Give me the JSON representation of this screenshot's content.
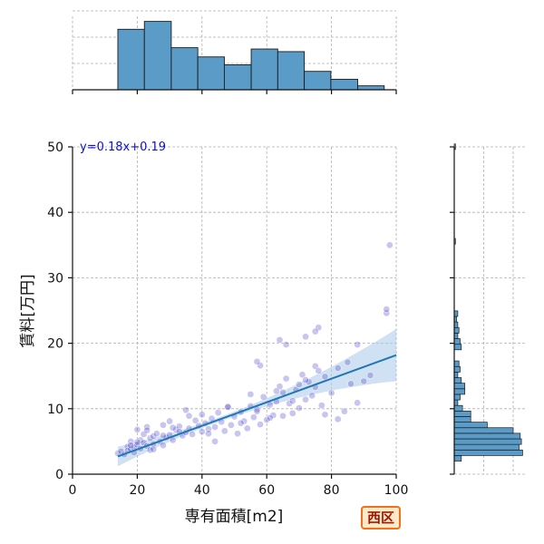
{
  "chart_data": {
    "type": "scatter",
    "xlabel": "専有面積[m2]",
    "ylabel": "賃料[万円]",
    "xlim": [
      0,
      100
    ],
    "ylim": [
      0,
      50
    ],
    "xticks": [
      0,
      20,
      40,
      60,
      80,
      100
    ],
    "yticks": [
      0,
      10,
      20,
      30,
      40,
      50
    ],
    "grid": true,
    "regression": {
      "label": "y=0.18x+0.19",
      "slope": 0.18,
      "intercept": 0.19,
      "x_range": [
        14,
        100
      ]
    },
    "points_x": [
      14,
      15,
      16,
      17,
      17,
      18,
      18,
      19,
      19,
      20,
      20,
      21,
      21,
      22,
      22,
      23,
      23,
      24,
      24,
      25,
      25,
      26,
      27,
      28,
      28,
      29,
      30,
      30,
      31,
      32,
      33,
      34,
      35,
      35,
      36,
      37,
      38,
      39,
      40,
      40,
      41,
      42,
      43,
      44,
      45,
      46,
      47,
      48,
      49,
      50,
      51,
      52,
      53,
      54,
      55,
      55,
      56,
      57,
      58,
      59,
      60,
      61,
      62,
      63,
      64,
      65,
      65,
      66,
      67,
      68,
      69,
      70,
      71,
      72,
      73,
      74,
      75,
      75,
      76,
      77,
      78,
      80,
      82,
      84,
      85,
      86,
      88,
      90,
      97,
      97,
      98,
      20,
      25,
      33,
      44,
      52,
      61,
      70,
      18,
      23,
      28,
      31,
      36,
      42,
      48,
      57,
      63,
      68,
      72,
      58,
      64,
      66,
      72,
      76,
      75,
      57,
      88,
      78,
      82,
      92
    ],
    "points_y": [
      3.2,
      3.5,
      3.0,
      4.2,
      3.6,
      3.8,
      5.0,
      4.1,
      3.3,
      4.5,
      6.8,
      5.2,
      3.9,
      4.8,
      6.1,
      4.3,
      7.2,
      5.5,
      3.7,
      5.8,
      4.6,
      6.2,
      5.0,
      4.4,
      7.5,
      5.6,
      6.0,
      8.1,
      5.2,
      6.8,
      7.3,
      5.9,
      6.4,
      9.8,
      7.0,
      6.1,
      8.2,
      7.4,
      6.5,
      9.1,
      7.8,
      6.9,
      8.5,
      7.2,
      9.4,
      8.0,
      6.6,
      10.2,
      7.5,
      8.8,
      6.2,
      9.5,
      8.1,
      7.0,
      10.4,
      12.2,
      8.7,
      9.9,
      7.6,
      11.8,
      8.3,
      10.6,
      9.0,
      11.1,
      13.4,
      8.9,
      12.5,
      14.6,
      10.8,
      9.3,
      12.9,
      13.7,
      15.2,
      11.4,
      14.1,
      12.0,
      16.5,
      13.3,
      15.8,
      10.5,
      14.9,
      12.4,
      16.2,
      9.6,
      17.1,
      13.8,
      19.8,
      14.2,
      24.6,
      25.2,
      35.0,
      4.9,
      3.8,
      6.5,
      5.0,
      7.8,
      8.6,
      10.1,
      4.4,
      6.7,
      5.9,
      7.1,
      8.9,
      6.2,
      10.3,
      9.6,
      12.7,
      11.2,
      14.4,
      16.6,
      20.5,
      19.8,
      21.0,
      22.4,
      21.8,
      17.2,
      10.9,
      9.1,
      8.4,
      15.1
    ],
    "top_hist": {
      "bin_edges": [
        14.0,
        22.2,
        30.5,
        38.7,
        46.9,
        55.2,
        63.4,
        71.6,
        79.8,
        88.1,
        96.3
      ],
      "counts": [
        46,
        52,
        32,
        25,
        19,
        31,
        29,
        14,
        8,
        3
      ]
    },
    "right_hist": {
      "bin_start": 2.0,
      "bin_width": 0.85,
      "counts": [
        12,
        116,
        110,
        114,
        112,
        100,
        56,
        28,
        28,
        14,
        6,
        10,
        18,
        18,
        12,
        6,
        10,
        8,
        0,
        0,
        12,
        10,
        6,
        8,
        6,
        4,
        6,
        0,
        0,
        0,
        0,
        0,
        0,
        0,
        0,
        0,
        0,
        0,
        0,
        2,
        0,
        0,
        0,
        0,
        0,
        0,
        0,
        0,
        0,
        0,
        0,
        0,
        0,
        0,
        0,
        0,
        2,
        0
      ]
    },
    "colors": {
      "bar": "#5a9bc8",
      "point": "#4a3fc8",
      "line": "#1f77b4",
      "ci_band": "#a8c9e8",
      "annotation": "#1010c8"
    }
  },
  "badge": {
    "label": "西区"
  }
}
